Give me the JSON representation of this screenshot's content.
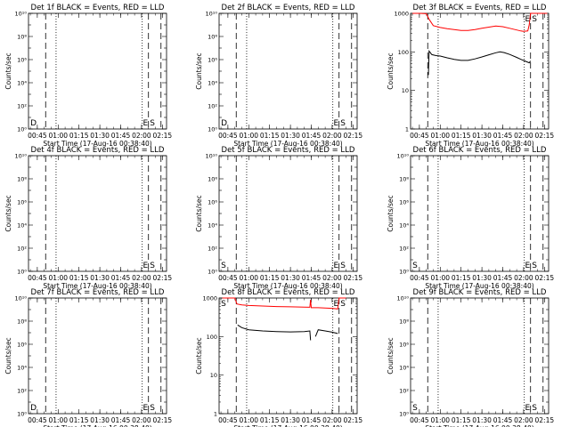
{
  "figure": {
    "xlabel": "Start Time (17-Aug-16 00:38:40)",
    "ylabel": "Counts/sec",
    "x_tick_labels": [
      "00:45",
      "01:00",
      "01:15",
      "01:30",
      "01:45",
      "02:00",
      "02:15"
    ],
    "colors": {
      "events": "#000000",
      "lld": "#ff0000",
      "axes": "#000000"
    }
  },
  "chart_data": [
    {
      "type": "line",
      "title": "Det 1f BLACK = Events, RED = LLD",
      "yscale": "log",
      "ylim": [
        1,
        10000000000
      ],
      "y_tick_labels": [
        "10⁰",
        "10²",
        "10⁴",
        "10⁶",
        "10⁸",
        "10¹⁰"
      ],
      "x_range": [
        "00:38:40",
        "02:18:00"
      ],
      "vlines": {
        "dashed": [
          "00:51:00",
          "02:05:00",
          "02:14:00"
        ],
        "dotted": [
          "00:58:30",
          "02:00:30"
        ]
      },
      "markers": [
        {
          "label": "D",
          "x": "00:40:00"
        },
        {
          "label": "E",
          "x": "02:01:00"
        },
        {
          "label": "S",
          "x": "02:06:00"
        }
      ],
      "series": []
    },
    {
      "type": "line",
      "title": "Det 2f BLACK = Events, RED = LLD",
      "yscale": "log",
      "ylim": [
        1,
        10000000000
      ],
      "y_tick_labels": [
        "10⁰",
        "10²",
        "10⁴",
        "10⁶",
        "10⁸",
        "10¹⁰"
      ],
      "x_range": [
        "00:38:40",
        "02:18:00"
      ],
      "vlines": {
        "dashed": [
          "00:51:00",
          "02:05:00",
          "02:14:00"
        ],
        "dotted": [
          "00:58:30",
          "02:00:30"
        ]
      },
      "markers": [
        {
          "label": "D",
          "x": "00:40:00"
        },
        {
          "label": "E",
          "x": "02:01:00"
        },
        {
          "label": "S",
          "x": "02:06:00"
        }
      ],
      "series": []
    },
    {
      "type": "line",
      "title": "Det 3f BLACK = Events, RED = LLD",
      "yscale": "log",
      "ylim": [
        1,
        1000
      ],
      "y_tick_labels": [
        "1",
        "10",
        "100",
        "1000"
      ],
      "x_range": [
        "00:38:40",
        "02:18:00"
      ],
      "vlines": {
        "dashed": [
          "00:51:00",
          "02:05:00",
          "02:14:00"
        ],
        "dotted": [
          "00:58:30",
          "02:00:30"
        ]
      },
      "markers": [
        {
          "label": "E",
          "x": "02:01:00"
        },
        {
          "label": "S",
          "x": "02:06:00"
        }
      ],
      "series": [
        {
          "color": "#ff0000",
          "segments": [
            [
              [
                "00:40:00",
                1000
              ],
              [
                "00:45:00",
                1000
              ],
              [
                "00:50:00",
                980
              ],
              [
                "00:52:00",
                700
              ],
              [
                "00:55:00",
                480
              ],
              [
                "01:00:00",
                430
              ],
              [
                "01:05:00",
                400
              ],
              [
                "01:10:00",
                380
              ],
              [
                "01:15:00",
                360
              ],
              [
                "01:20:00",
                360
              ],
              [
                "01:25:00",
                380
              ],
              [
                "01:30:00",
                410
              ],
              [
                "01:35:00",
                440
              ],
              [
                "01:40:00",
                470
              ],
              [
                "01:45:00",
                450
              ],
              [
                "01:50:00",
                410
              ],
              [
                "01:55:00",
                370
              ],
              [
                "01:58:00",
                350
              ],
              [
                "02:00:00",
                340
              ],
              [
                "02:03:00",
                350
              ],
              [
                "02:04:00",
                500
              ],
              [
                "02:05:00",
                1000
              ],
              [
                "02:17:00",
                1000
              ]
            ]
          ]
        },
        {
          "color": "#000000",
          "segments": [
            [
              [
                "00:51:30",
                25
              ],
              [
                "00:52:00",
                105
              ],
              [
                "00:54:00",
                85
              ],
              [
                "00:57:00",
                80
              ],
              [
                "01:00:00",
                78
              ],
              [
                "01:05:00",
                70
              ],
              [
                "01:10:00",
                64
              ],
              [
                "01:15:00",
                60
              ],
              [
                "01:20:00",
                60
              ],
              [
                "01:25:00",
                66
              ],
              [
                "01:30:00",
                74
              ],
              [
                "01:35:00",
                84
              ],
              [
                "01:40:00",
                95
              ],
              [
                "01:43:00",
                100
              ],
              [
                "01:46:00",
                96
              ],
              [
                "01:50:00",
                86
              ],
              [
                "01:55:00",
                72
              ],
              [
                "01:58:00",
                64
              ],
              [
                "02:01:00",
                58
              ],
              [
                "02:04:00",
                52
              ],
              [
                "02:05:00",
                58
              ]
            ]
          ]
        }
      ]
    },
    {
      "type": "line",
      "title": "Det 4f BLACK = Events, RED = LLD",
      "yscale": "log",
      "ylim": [
        1,
        10000000000
      ],
      "y_tick_labels": [
        "10⁰",
        "10²",
        "10⁴",
        "10⁶",
        "10⁸",
        "10¹⁰"
      ],
      "x_range": [
        "00:38:40",
        "02:18:00"
      ],
      "vlines": {
        "dashed": [
          "00:51:00",
          "02:05:00",
          "02:14:00"
        ],
        "dotted": [
          "00:58:30",
          "02:00:30"
        ]
      },
      "markers": [
        {
          "label": "E",
          "x": "02:01:00"
        },
        {
          "label": "S",
          "x": "02:06:00"
        }
      ],
      "series": []
    },
    {
      "type": "line",
      "title": "Det 5f BLACK = Events, RED = LLD",
      "yscale": "log",
      "ylim": [
        1,
        10000000000
      ],
      "y_tick_labels": [
        "10⁰",
        "10²",
        "10⁴",
        "10⁶",
        "10⁸",
        "10¹⁰"
      ],
      "x_range": [
        "00:38:40",
        "02:18:00"
      ],
      "vlines": {
        "dashed": [
          "00:51:00",
          "02:05:00",
          "02:14:00"
        ],
        "dotted": [
          "00:58:30",
          "02:00:30"
        ]
      },
      "markers": [
        {
          "label": "S",
          "x": "00:40:00"
        },
        {
          "label": "E",
          "x": "02:01:00"
        },
        {
          "label": "S",
          "x": "02:06:00"
        }
      ],
      "series": []
    },
    {
      "type": "line",
      "title": "Det 6f BLACK = Events, RED = LLD",
      "yscale": "log",
      "ylim": [
        1,
        10000000000
      ],
      "y_tick_labels": [
        "10⁰",
        "10²",
        "10⁴",
        "10⁶",
        "10⁸",
        "10¹⁰"
      ],
      "x_range": [
        "00:38:40",
        "02:18:00"
      ],
      "vlines": {
        "dashed": [
          "00:51:00",
          "02:05:00",
          "02:14:00"
        ],
        "dotted": [
          "00:58:30",
          "02:00:30"
        ]
      },
      "markers": [
        {
          "label": "S",
          "x": "00:40:00"
        },
        {
          "label": "E",
          "x": "02:01:00"
        },
        {
          "label": "S",
          "x": "02:06:00"
        }
      ],
      "series": []
    },
    {
      "type": "line",
      "title": "Det 7f BLACK = Events, RED = LLD",
      "yscale": "log",
      "ylim": [
        1,
        10000000000
      ],
      "y_tick_labels": [
        "10⁰",
        "10²",
        "10⁴",
        "10⁶",
        "10⁸",
        "10¹⁰"
      ],
      "x_range": [
        "00:38:40",
        "02:18:00"
      ],
      "vlines": {
        "dashed": [
          "00:51:00",
          "02:05:00",
          "02:14:00"
        ],
        "dotted": [
          "00:58:30",
          "02:00:30"
        ]
      },
      "markers": [
        {
          "label": "D",
          "x": "00:40:00"
        },
        {
          "label": "E",
          "x": "02:01:00"
        },
        {
          "label": "S",
          "x": "02:06:00"
        }
      ],
      "series": []
    },
    {
      "type": "line",
      "title": "Det 8f BLACK = Events, RED = LLD",
      "yscale": "log",
      "ylim": [
        1,
        1000
      ],
      "y_tick_labels": [
        "1",
        "10",
        "100",
        "1000"
      ],
      "x_range": [
        "00:38:40",
        "02:18:00"
      ],
      "vlines": {
        "dashed": [
          "00:51:00",
          "02:05:00",
          "02:14:00"
        ],
        "dotted": [
          "00:58:30",
          "02:00:30"
        ]
      },
      "markers": [
        {
          "label": "S",
          "x": "00:40:00"
        },
        {
          "label": "E",
          "x": "02:01:00"
        },
        {
          "label": "S",
          "x": "02:06:00"
        }
      ],
      "series": [
        {
          "color": "#ff0000",
          "segments": [
            [
              [
                "00:41:00",
                1000
              ],
              [
                "00:50:00",
                1000
              ],
              [
                "00:51:30",
                700
              ],
              [
                "00:55:00",
                660
              ],
              [
                "01:00:00",
                640
              ],
              [
                "01:10:00",
                620
              ],
              [
                "01:20:00",
                600
              ],
              [
                "01:30:00",
                590
              ],
              [
                "01:40:00",
                580
              ],
              [
                "01:44:00",
                575
              ],
              [
                "01:44:30",
                900
              ],
              [
                "01:45:00",
                560
              ],
              [
                "01:50:00",
                560
              ],
              [
                "01:55:00",
                550
              ],
              [
                "02:00:00",
                540
              ],
              [
                "02:04:00",
                520
              ],
              [
                "02:05:00",
                1000
              ],
              [
                "02:10:00",
                1000
              ]
            ]
          ]
        },
        {
          "color": "#000000",
          "segments": [
            [
              [
                "00:52:00",
                200
              ],
              [
                "00:55:00",
                170
              ],
              [
                "01:00:00",
                150
              ],
              [
                "01:10:00",
                140
              ],
              [
                "01:20:00",
                135
              ],
              [
                "01:30:00",
                132
              ],
              [
                "01:40:00",
                135
              ],
              [
                "01:44:00",
                140
              ],
              [
                "01:44:30",
                80
              ]
            ],
            [
              [
                "01:48:00",
                100
              ],
              [
                "01:50:00",
                150
              ],
              [
                "01:55:00",
                140
              ],
              [
                "02:00:00",
                130
              ],
              [
                "02:04:00",
                120
              ]
            ]
          ]
        }
      ]
    },
    {
      "type": "line",
      "title": "Det 9f BLACK = Events, RED = LLD",
      "yscale": "log",
      "ylim": [
        1,
        10000000000
      ],
      "y_tick_labels": [
        "10⁰",
        "10²",
        "10⁴",
        "10⁶",
        "10⁸",
        "10¹⁰"
      ],
      "x_range": [
        "00:38:40",
        "02:18:00"
      ],
      "vlines": {
        "dashed": [
          "00:51:00",
          "02:05:00",
          "02:14:00"
        ],
        "dotted": [
          "00:58:30",
          "02:00:30"
        ]
      },
      "markers": [
        {
          "label": "S",
          "x": "00:40:00"
        },
        {
          "label": "E",
          "x": "02:01:00"
        },
        {
          "label": "S",
          "x": "02:06:00"
        }
      ],
      "series": []
    }
  ]
}
